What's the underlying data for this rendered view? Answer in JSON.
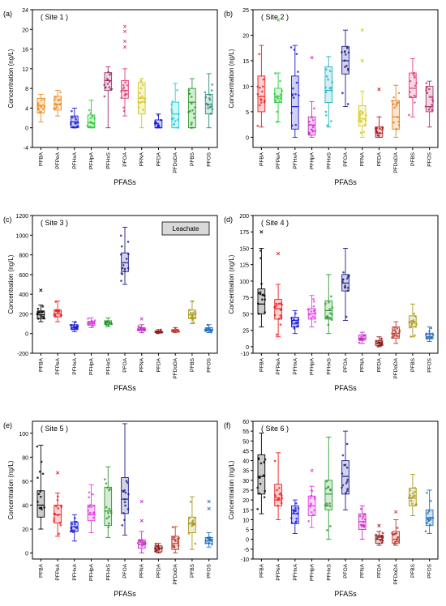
{
  "figure": {
    "x_title": "PFASs",
    "y_title": "Concentration (ng/L)",
    "categories": [
      "PFBA",
      "PFPeA",
      "PFHxA",
      "PFHpA",
      "PFHxS",
      "PFOA",
      "PFNA",
      "PFDA",
      "PFDoDA",
      "PFBS",
      "PFOS"
    ],
    "colors": {
      "PFBA": "#000000",
      "PFPeA": "#ee1c1c",
      "PFHxA": "#1a1ad6",
      "PFHpA": "#e33ce3",
      "PFHxS": "#2b9a2b",
      "PFOA": "#1c1c8a",
      "PFNA": "#c42fc4",
      "PFDA": "#8b1a1a",
      "PFDoDA": "#c0392b",
      "PFBS": "#a89a1a",
      "PFOS": "#1f6fc0"
    }
  },
  "chart_data": [
    {
      "type": "box",
      "panel": "(a)",
      "title": "( Site 1 )",
      "ylim": [
        -4,
        24
      ],
      "yticks": [
        -4,
        0,
        4,
        8,
        12,
        16,
        20,
        24
      ],
      "categories": [
        "PFBA",
        "PFPeA",
        "PFHxA",
        "PFHpA",
        "PFHxS",
        "PFOA",
        "PFNA",
        "PFDA",
        "PFDoDA",
        "PFBS",
        "PFOS"
      ],
      "colors": [
        "#f08a1a",
        "#f08a1a",
        "#1a1ad6",
        "#2ecc40",
        "#a0336e",
        "#e0407a",
        "#d4c81a",
        "#1a1ad6",
        "#22d0d0",
        "#2b9a2b",
        "#2a8a7a"
      ],
      "boxes": [
        {
          "min": 1.2,
          "q1": 3.0,
          "median": 4.6,
          "q3": 6.0,
          "max": 6.8,
          "outliers": []
        },
        {
          "min": 2.4,
          "q1": 3.6,
          "median": 4.8,
          "q3": 6.4,
          "max": 7.6,
          "outliers": []
        },
        {
          "min": 0.0,
          "q1": 0.0,
          "median": 1.2,
          "q3": 2.4,
          "max": 4.0,
          "outliers": []
        },
        {
          "min": 0.0,
          "q1": 0.0,
          "median": 1.0,
          "q3": 2.6,
          "max": 5.6,
          "outliers": []
        },
        {
          "min": 0.0,
          "q1": 7.6,
          "median": 9.6,
          "q3": 11.2,
          "max": 12.4,
          "outliers": []
        },
        {
          "min": 2.4,
          "q1": 6.0,
          "median": 7.6,
          "q3": 9.6,
          "max": 12.0,
          "outliers": [
            16.4,
            17.6,
            19.6,
            20.6
          ]
        },
        {
          "min": 0.0,
          "q1": 2.8,
          "median": 6.0,
          "q3": 9.2,
          "max": 10.0,
          "outliers": []
        },
        {
          "min": 0.0,
          "q1": 0.0,
          "median": 0.0,
          "q3": 1.6,
          "max": 2.8,
          "outliers": []
        },
        {
          "min": 0.0,
          "q1": 0.0,
          "median": 2.8,
          "q3": 5.2,
          "max": 9.0,
          "outliers": []
        },
        {
          "min": 0.0,
          "q1": 0.0,
          "median": 5.2,
          "q3": 8.0,
          "max": 10.0,
          "outliers": []
        },
        {
          "min": 0.0,
          "q1": 2.8,
          "median": 4.8,
          "q3": 6.8,
          "max": 11.0,
          "outliers": []
        }
      ]
    },
    {
      "type": "box",
      "panel": "(b)",
      "title": "( Site 2 )",
      "ylim": [
        -2,
        25
      ],
      "yticks": [
        0,
        5,
        10,
        15,
        20,
        25
      ],
      "categories": [
        "PFBA",
        "PFPeA",
        "PFHxA",
        "PFHpA",
        "PFHxS",
        "PFOA",
        "PFNA",
        "PFDA",
        "PFDoDA",
        "PFBS",
        "PFOS"
      ],
      "colors": [
        "#ee1c1c",
        "#2ecc40",
        "#1a1ad6",
        "#d02ad0",
        "#22b0c0",
        "#1c1c8a",
        "#d4c81a",
        "#b01a1a",
        "#e8801a",
        "#e0407a",
        "#b0336e"
      ],
      "boxes": [
        {
          "min": 2.0,
          "q1": 5.0,
          "median": 8.0,
          "q3": 12.0,
          "max": 18.0,
          "outliers": []
        },
        {
          "min": 3.0,
          "q1": 6.8,
          "median": 8.0,
          "q3": 9.6,
          "max": 12.6,
          "outliers": [
            23.0
          ]
        },
        {
          "min": 0.0,
          "q1": 1.6,
          "median": 6.0,
          "q3": 12.0,
          "max": 18.0,
          "outliers": []
        },
        {
          "min": 0.0,
          "q1": 0.4,
          "median": 2.4,
          "q3": 4.0,
          "max": 7.0,
          "outliers": [
            15.6
          ]
        },
        {
          "min": 2.0,
          "q1": 6.8,
          "median": 9.2,
          "q3": 13.8,
          "max": 15.8,
          "outliers": []
        },
        {
          "min": 6.0,
          "q1": 12.4,
          "median": 15.0,
          "q3": 17.8,
          "max": 21.0,
          "outliers": []
        },
        {
          "min": 0.0,
          "q1": 2.2,
          "median": 3.6,
          "q3": 6.2,
          "max": 9.0,
          "outliers": [
            15.0,
            21.0
          ]
        },
        {
          "min": 0.0,
          "q1": 0.0,
          "median": 0.8,
          "q3": 2.0,
          "max": 4.0,
          "outliers": [
            9.4
          ]
        },
        {
          "min": 0.0,
          "q1": 1.6,
          "median": 4.0,
          "q3": 7.2,
          "max": 10.2,
          "outliers": []
        },
        {
          "min": 4.0,
          "q1": 7.8,
          "median": 9.6,
          "q3": 12.6,
          "max": 15.4,
          "outliers": []
        },
        {
          "min": 2.0,
          "q1": 5.0,
          "median": 6.0,
          "q3": 10.0,
          "max": 11.0,
          "outliers": []
        }
      ]
    },
    {
      "type": "box",
      "panel": "(c)",
      "title": "( Site 3 )",
      "annotation": "Leachate",
      "ylim": [
        -200,
        1200
      ],
      "yticks": [
        -200,
        0,
        200,
        400,
        600,
        800,
        1000,
        1200
      ],
      "categories": [
        "PFBA",
        "PFPeA",
        "PFHxA",
        "PFHpA",
        "PFHxS",
        "PFOA",
        "PFNA",
        "PFDA",
        "PFDoDA",
        "PFBS",
        "PFOS"
      ],
      "colors": [
        "#000000",
        "#ee1c1c",
        "#1a1ad6",
        "#e33ce3",
        "#2b9a2b",
        "#1c1c8a",
        "#c42fc4",
        "#8b1a1a",
        "#c0392b",
        "#a89a1a",
        "#1f6fc0"
      ],
      "boxes": [
        {
          "min": 120,
          "q1": 150,
          "median": 190,
          "q3": 230,
          "max": 290,
          "outliers": [
            440
          ]
        },
        {
          "min": 120,
          "q1": 170,
          "median": 200,
          "q3": 240,
          "max": 330,
          "outliers": []
        },
        {
          "min": 20,
          "q1": 40,
          "median": 60,
          "q3": 90,
          "max": 120,
          "outliers": []
        },
        {
          "min": 60,
          "q1": 85,
          "median": 100,
          "q3": 125,
          "max": 160,
          "outliers": []
        },
        {
          "min": 70,
          "q1": 95,
          "median": 110,
          "q3": 130,
          "max": 160,
          "outliers": []
        },
        {
          "min": 500,
          "q1": 630,
          "median": 720,
          "q3": 820,
          "max": 1080,
          "outliers": []
        },
        {
          "min": 10,
          "q1": 30,
          "median": 40,
          "q3": 60,
          "max": 90,
          "outliers": [
            150
          ]
        },
        {
          "min": 0,
          "q1": 10,
          "median": 15,
          "q3": 25,
          "max": 40,
          "outliers": []
        },
        {
          "min": 10,
          "q1": 20,
          "median": 30,
          "q3": 40,
          "max": 60,
          "outliers": []
        },
        {
          "min": 100,
          "q1": 150,
          "median": 190,
          "q3": 240,
          "max": 330,
          "outliers": []
        },
        {
          "min": 10,
          "q1": 25,
          "median": 40,
          "q3": 60,
          "max": 90,
          "outliers": []
        }
      ]
    },
    {
      "type": "box",
      "panel": "(d)",
      "title": "( Site 4 )",
      "ylim": [
        -10,
        200
      ],
      "yticks": [
        -10,
        0,
        25,
        50,
        75,
        100,
        125,
        150,
        175,
        200
      ],
      "categories": [
        "PFBA",
        "PFPeA",
        "PFHxA",
        "PFHpA",
        "PFHxS",
        "PFOA",
        "PFNA",
        "PFDA",
        "PFDoDA",
        "PFBS",
        "PFOS"
      ],
      "colors": [
        "#000000",
        "#ee1c1c",
        "#1a1ad6",
        "#e33ce3",
        "#2b9a2b",
        "#1c1c8a",
        "#c42fc4",
        "#8b1a1a",
        "#c0392b",
        "#a89a1a",
        "#1f6fc0"
      ],
      "boxes": [
        {
          "min": 30,
          "q1": 50,
          "median": 65,
          "q3": 88,
          "max": 150,
          "outliers": [
            175
          ]
        },
        {
          "min": 15,
          "q1": 42,
          "median": 58,
          "q3": 72,
          "max": 95,
          "outliers": [
            142
          ]
        },
        {
          "min": 20,
          "q1": 30,
          "median": 40,
          "q3": 45,
          "max": 55,
          "outliers": []
        },
        {
          "min": 30,
          "q1": 42,
          "median": 50,
          "q3": 58,
          "max": 78,
          "outliers": []
        },
        {
          "min": 20,
          "q1": 42,
          "median": 55,
          "q3": 70,
          "max": 110,
          "outliers": []
        },
        {
          "min": 40,
          "q1": 85,
          "median": 97,
          "q3": 110,
          "max": 150,
          "outliers": []
        },
        {
          "min": 5,
          "q1": 10,
          "median": 13,
          "q3": 18,
          "max": 22,
          "outliers": []
        },
        {
          "min": 0,
          "q1": 2,
          "median": 5,
          "q3": 9,
          "max": 15,
          "outliers": []
        },
        {
          "min": 5,
          "q1": 13,
          "median": 20,
          "q3": 30,
          "max": 38,
          "outliers": []
        },
        {
          "min": 15,
          "q1": 30,
          "median": 38,
          "q3": 47,
          "max": 65,
          "outliers": []
        },
        {
          "min": 8,
          "q1": 12,
          "median": 15,
          "q3": 20,
          "max": 30,
          "outliers": []
        }
      ]
    },
    {
      "type": "box",
      "panel": "(e)",
      "title": "( Site 5 )",
      "ylim": [
        -5,
        110
      ],
      "yticks": [
        0,
        20,
        40,
        60,
        80,
        100
      ],
      "categories": [
        "PFBA",
        "PFPeA",
        "PFHxA",
        "PFHpA",
        "PFHxS",
        "PFOA",
        "PFNA",
        "PFDA",
        "PFDoDA",
        "PFBS",
        "PFOS"
      ],
      "colors": [
        "#000000",
        "#ee1c1c",
        "#1a1ad6",
        "#e33ce3",
        "#2b9a2b",
        "#1c1c8a",
        "#c42fc4",
        "#8b1a1a",
        "#c0392b",
        "#a89a1a",
        "#1f6fc0"
      ],
      "boxes": [
        {
          "min": 20,
          "q1": 30,
          "median": 40,
          "q3": 52,
          "max": 90,
          "outliers": []
        },
        {
          "min": 14,
          "q1": 25,
          "median": 32,
          "q3": 40,
          "max": 50,
          "outliers": [
            67
          ]
        },
        {
          "min": 10,
          "q1": 18,
          "median": 22,
          "q3": 26,
          "max": 32,
          "outliers": []
        },
        {
          "min": 17,
          "q1": 27,
          "median": 32,
          "q3": 40,
          "max": 57,
          "outliers": []
        },
        {
          "min": 13,
          "q1": 23,
          "median": 35,
          "q3": 55,
          "max": 72,
          "outliers": []
        },
        {
          "min": 15,
          "q1": 33,
          "median": 45,
          "q3": 63,
          "max": 108,
          "outliers": []
        },
        {
          "min": 0,
          "q1": 4,
          "median": 7,
          "q3": 11,
          "max": 18,
          "outliers": [
            27,
            43
          ]
        },
        {
          "min": 0,
          "q1": 1,
          "median": 4,
          "q3": 6,
          "max": 8,
          "outliers": []
        },
        {
          "min": 0,
          "q1": 3,
          "median": 8,
          "q3": 14,
          "max": 22,
          "outliers": []
        },
        {
          "min": 3,
          "q1": 17,
          "median": 25,
          "q3": 30,
          "max": 47,
          "outliers": []
        },
        {
          "min": 5,
          "q1": 8,
          "median": 10,
          "q3": 13,
          "max": 17,
          "outliers": [
            37,
            43
          ]
        }
      ]
    },
    {
      "type": "box",
      "panel": "(f)",
      "title": "( Site 6 )",
      "ylim": [
        -10,
        60
      ],
      "yticks": [
        -10,
        -5,
        0,
        5,
        10,
        15,
        20,
        25,
        30,
        35,
        40,
        45,
        50,
        55,
        60
      ],
      "categories": [
        "PFBA",
        "PFPeA",
        "PFHxA",
        "PFHpA",
        "PFHxS",
        "PFOA",
        "PFNA",
        "PFDA",
        "PFDoDA",
        "PFBS",
        "PFOS"
      ],
      "colors": [
        "#000000",
        "#ee1c1c",
        "#1a1ad6",
        "#e33ce3",
        "#2b9a2b",
        "#1c1c8a",
        "#c42fc4",
        "#8b1a1a",
        "#c0392b",
        "#a89a1a",
        "#1f6fc0"
      ],
      "boxes": [
        {
          "min": 13,
          "q1": 23,
          "median": 32,
          "q3": 43,
          "max": 54,
          "outliers": []
        },
        {
          "min": 10,
          "q1": 17,
          "median": 20,
          "q3": 28,
          "max": 44,
          "outliers": []
        },
        {
          "min": 3,
          "q1": 8,
          "median": 13,
          "q3": 17,
          "max": 20,
          "outliers": []
        },
        {
          "min": 6,
          "q1": 12,
          "median": 17,
          "q3": 22,
          "max": 27,
          "outliers": [
            35
          ]
        },
        {
          "min": 0,
          "q1": 15,
          "median": 23,
          "q3": 30,
          "max": 52,
          "outliers": []
        },
        {
          "min": 15,
          "q1": 23,
          "median": 32,
          "q3": 40,
          "max": 55,
          "outliers": []
        },
        {
          "min": 0,
          "q1": 5,
          "median": 9,
          "q3": 13,
          "max": 17,
          "outliers": []
        },
        {
          "min": -3,
          "q1": -2,
          "median": 0,
          "q3": 2,
          "max": 4,
          "outliers": [
            7
          ]
        },
        {
          "min": -3,
          "q1": -2,
          "median": 0,
          "q3": 4,
          "max": 10,
          "outliers": [
            14
          ]
        },
        {
          "min": 12,
          "q1": 17,
          "median": 21,
          "q3": 26,
          "max": 33,
          "outliers": []
        },
        {
          "min": 3,
          "q1": 7,
          "median": 11,
          "q3": 15,
          "max": 25,
          "outliers": []
        }
      ]
    }
  ]
}
